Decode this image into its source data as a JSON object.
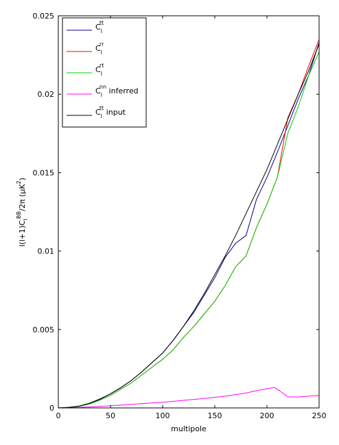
{
  "chart_data": {
    "type": "line",
    "xlabel": "multipole",
    "ylabel": {
      "prefix": "l(l+1)C",
      "sub": "l",
      "sup": "BB",
      "mid": "/2π (μK",
      "sup2": "2",
      "suffix": ")"
    },
    "xlim": [
      0,
      250
    ],
    "ylim": [
      0,
      0.025
    ],
    "xticks": [
      0,
      50,
      100,
      150,
      200,
      250
    ],
    "xtick_labels": [
      "0",
      "50",
      "100",
      "150",
      "200",
      "250"
    ],
    "yticks": [
      0,
      0.005,
      0.01,
      0.015,
      0.02,
      0.025
    ],
    "ytick_labels": [
      "0",
      "0.005",
      "0.01",
      "0.015",
      "0.02",
      "0.025"
    ],
    "grid": false,
    "legend_position": "top-left",
    "series": [
      {
        "name": "C_l^tt",
        "legend": {
          "base": "C",
          "sub": "l",
          "sup": "tt",
          "suffix": ""
        },
        "color": "#00008b",
        "x": [
          0,
          10,
          20,
          30,
          40,
          50,
          60,
          70,
          80,
          90,
          100,
          110,
          120,
          130,
          140,
          150,
          160,
          170,
          180,
          190,
          200,
          210,
          220,
          230,
          240,
          250
        ],
        "y": [
          0,
          3e-05,
          0.00012,
          0.00028,
          0.00055,
          0.0009,
          0.0013,
          0.00175,
          0.0023,
          0.0029,
          0.0035,
          0.0043,
          0.0052,
          0.0061,
          0.0072,
          0.0083,
          0.0096,
          0.0105,
          0.011,
          0.0133,
          0.0147,
          0.0163,
          0.018,
          0.0197,
          0.0212,
          0.0233
        ]
      },
      {
        "name": "C_l^rr",
        "legend": {
          "base": "C",
          "sub": "l",
          "sup": "rr",
          "suffix": ""
        },
        "color": "#ff0000",
        "x": [
          0,
          10,
          20,
          30,
          40,
          50,
          60,
          70,
          80,
          90,
          100,
          110,
          120,
          130,
          140,
          150,
          160,
          170,
          180,
          190,
          200,
          210,
          220,
          230,
          240,
          250
        ],
        "y": [
          0,
          3e-05,
          0.0001,
          0.00025,
          0.0005,
          0.0008,
          0.0012,
          0.0016,
          0.0021,
          0.0026,
          0.0031,
          0.0037,
          0.0045,
          0.0052,
          0.006,
          0.0068,
          0.0078,
          0.009,
          0.0097,
          0.0115,
          0.013,
          0.0147,
          0.0185,
          0.02,
          0.0218,
          0.0235
        ]
      },
      {
        "name": "C_l^rt",
        "legend": {
          "base": "C",
          "sub": "l",
          "sup": "rt",
          "suffix": ""
        },
        "color": "#00cc00",
        "x": [
          0,
          10,
          20,
          30,
          40,
          50,
          60,
          70,
          80,
          90,
          100,
          110,
          120,
          130,
          140,
          150,
          160,
          170,
          180,
          190,
          200,
          210,
          220,
          230,
          240,
          250
        ],
        "y": [
          0,
          3e-05,
          0.0001,
          0.00025,
          0.0005,
          0.0008,
          0.0012,
          0.0016,
          0.0021,
          0.0026,
          0.0031,
          0.0037,
          0.0045,
          0.0052,
          0.006,
          0.0068,
          0.0078,
          0.009,
          0.0097,
          0.0115,
          0.013,
          0.0147,
          0.0175,
          0.0192,
          0.0212,
          0.0227
        ]
      },
      {
        "name": "C_l^nn inferred",
        "legend": {
          "base": "C",
          "sub": "l",
          "sup": "nn",
          "suffix": " inferred"
        },
        "color": "#ff00ff",
        "x": [
          0,
          20,
          40,
          60,
          80,
          100,
          120,
          140,
          160,
          180,
          190,
          200,
          207,
          212,
          220,
          230,
          240,
          250
        ],
        "y": [
          0,
          3e-05,
          0.0001,
          0.00018,
          0.00027,
          0.00036,
          0.00048,
          0.0006,
          0.00075,
          0.00095,
          0.0011,
          0.00122,
          0.0013,
          0.0011,
          0.0007,
          0.0007,
          0.00075,
          0.0008
        ]
      },
      {
        "name": "C_l^tt input",
        "legend": {
          "base": "C",
          "sub": "l",
          "sup": "tt",
          "suffix": " input"
        },
        "color": "#000000",
        "x": [
          0,
          10,
          20,
          30,
          40,
          50,
          60,
          70,
          80,
          90,
          100,
          110,
          120,
          130,
          140,
          150,
          160,
          170,
          180,
          190,
          200,
          210,
          220,
          230,
          240,
          250
        ],
        "y": [
          0,
          3e-05,
          0.00012,
          0.0003,
          0.00058,
          0.0009,
          0.0013,
          0.00175,
          0.0023,
          0.0029,
          0.0035,
          0.0043,
          0.0052,
          0.0062,
          0.0073,
          0.0085,
          0.0097,
          0.011,
          0.0124,
          0.0138,
          0.0152,
          0.0168,
          0.0184,
          0.02,
          0.0215,
          0.0232
        ]
      }
    ]
  }
}
